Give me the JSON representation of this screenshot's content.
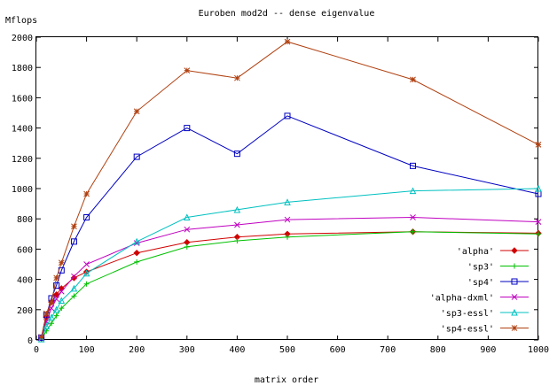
{
  "chart_data": {
    "type": "line",
    "title": "Euroben mod2d -- dense eigenvalue",
    "ylabel": "Mflops",
    "xlabel": "matrix order",
    "xlim": [
      0,
      1000
    ],
    "ylim": [
      0,
      2000
    ],
    "xticks": [
      0,
      100,
      200,
      300,
      400,
      500,
      600,
      700,
      800,
      900,
      1000
    ],
    "yticks": [
      0,
      200,
      400,
      600,
      800,
      1000,
      1200,
      1400,
      1600,
      1800,
      2000
    ],
    "grid": false,
    "legend_position": "bottom-right",
    "series": [
      {
        "name": "'alpha'",
        "color": "#d00000",
        "marker": "diamond",
        "x": [
          10,
          20,
          30,
          40,
          50,
          75,
          100,
          200,
          300,
          400,
          500,
          750,
          1000
        ],
        "y": [
          10,
          150,
          250,
          300,
          340,
          410,
          450,
          575,
          645,
          680,
          700,
          715,
          705
        ]
      },
      {
        "name": "'sp3'",
        "color": "#00c000",
        "marker": "plus",
        "x": [
          10,
          20,
          30,
          40,
          50,
          75,
          100,
          200,
          300,
          400,
          500,
          750,
          1000
        ],
        "y": [
          5,
          60,
          110,
          160,
          210,
          290,
          370,
          515,
          615,
          655,
          680,
          715,
          700
        ]
      },
      {
        "name": "'sp4'",
        "color": "#0000c0",
        "marker": "square",
        "x": [
          10,
          20,
          30,
          40,
          50,
          75,
          100,
          200,
          300,
          400,
          500,
          750,
          1000
        ],
        "y": [
          15,
          165,
          275,
          360,
          460,
          650,
          810,
          1210,
          1400,
          1230,
          1480,
          1150,
          965
        ]
      },
      {
        "name": "'alpha-dxml'",
        "color": "#c000c0",
        "marker": "x",
        "x": [
          10,
          20,
          30,
          40,
          50,
          75,
          100,
          200,
          300,
          400,
          500,
          750,
          1000
        ],
        "y": [
          10,
          120,
          210,
          270,
          320,
          420,
          500,
          640,
          730,
          760,
          795,
          810,
          780
        ]
      },
      {
        "name": "'sp3-essl'",
        "color": "#00c0c0",
        "marker": "triangle",
        "x": [
          10,
          20,
          30,
          40,
          50,
          75,
          100,
          200,
          300,
          400,
          500,
          750,
          1000
        ],
        "y": [
          5,
          90,
          150,
          200,
          260,
          340,
          440,
          650,
          810,
          860,
          910,
          985,
          1000
        ]
      },
      {
        "name": "'sp4-essl'",
        "color": "#b04010",
        "marker": "star",
        "x": [
          10,
          20,
          30,
          40,
          50,
          75,
          100,
          200,
          300,
          400,
          500,
          750,
          1000
        ],
        "y": [
          20,
          175,
          250,
          410,
          510,
          750,
          965,
          1510,
          1780,
          1730,
          1970,
          1720,
          1290
        ]
      }
    ]
  }
}
